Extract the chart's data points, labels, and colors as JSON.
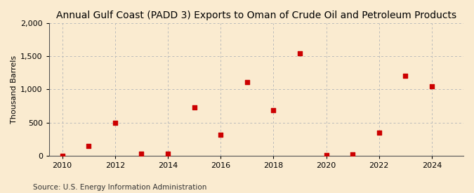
{
  "title": "Annual Gulf Coast (PADD 3) Exports to Oman of Crude Oil and Petroleum Products",
  "ylabel": "Thousand Barrels",
  "source": "Source: U.S. Energy Information Administration",
  "background_color": "#faebd0",
  "plot_bg_color": "#faebd0",
  "marker_color": "#cc0000",
  "grid_color": "#bbbbbb",
  "years": [
    2010,
    2011,
    2012,
    2013,
    2014,
    2015,
    2016,
    2017,
    2018,
    2019,
    2020,
    2021,
    2022,
    2023,
    2024
  ],
  "values": [
    2,
    150,
    490,
    30,
    25,
    730,
    320,
    1110,
    685,
    1540,
    5,
    20,
    350,
    1210,
    1050
  ],
  "xlim": [
    2009.5,
    2025.2
  ],
  "ylim": [
    0,
    2000
  ],
  "yticks": [
    0,
    500,
    1000,
    1500,
    2000
  ],
  "xticks": [
    2010,
    2012,
    2014,
    2016,
    2018,
    2020,
    2022,
    2024
  ],
  "title_fontsize": 10,
  "label_fontsize": 8,
  "tick_fontsize": 8,
  "source_fontsize": 7.5,
  "marker_size": 20
}
